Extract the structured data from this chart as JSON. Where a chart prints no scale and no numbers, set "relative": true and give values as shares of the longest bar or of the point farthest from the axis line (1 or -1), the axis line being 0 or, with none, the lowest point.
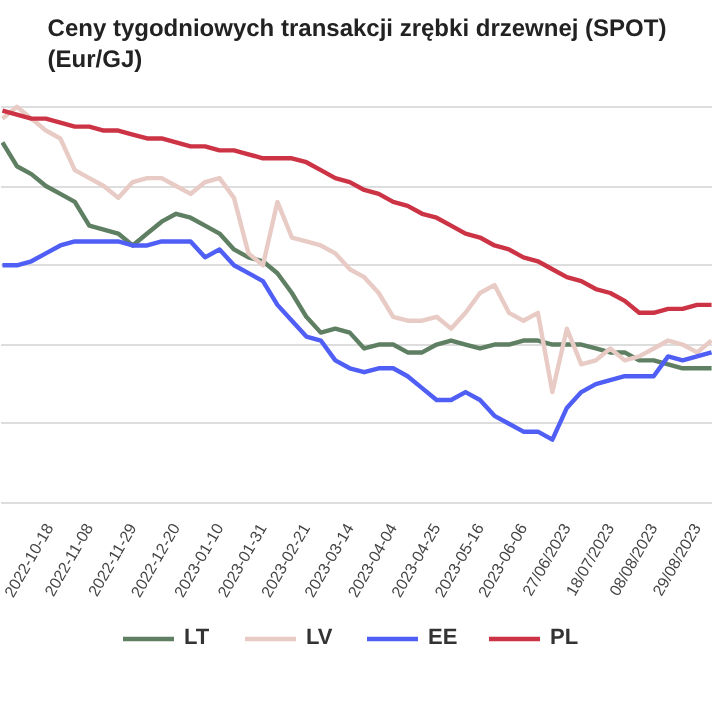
{
  "chart_data": {
    "type": "line",
    "title": "Ceny tygodniowych transakcji zrębki drzewnej (SPOT)\n(Eur/GJ)",
    "relative": true,
    "grid": "y",
    "legend": "bottom",
    "line_style": "solid",
    "marker": "none",
    "categories": [
      null,
      null,
      null,
      "2022-10-18",
      null,
      null,
      "2022-11-08",
      null,
      null,
      "2022-11-29",
      null,
      null,
      "2022-12-20",
      null,
      null,
      "2023-01-10",
      null,
      null,
      "2023-01-31",
      null,
      null,
      "2023-02-21",
      null,
      null,
      "2023-03-14",
      null,
      null,
      "2023-04-04",
      null,
      null,
      "2023-04-25",
      null,
      null,
      "2023-05-16",
      null,
      null,
      "2023-06-06",
      null,
      null,
      "27/06/2023",
      null,
      null,
      "18/07/2023",
      null,
      null,
      "08/08/2023",
      null,
      null,
      "29/08/2023",
      null
    ],
    "series": [
      {
        "name": "LT",
        "color": "#5f7f63",
        "values": [
          0.91,
          0.85,
          0.83,
          0.8,
          0.78,
          0.76,
          0.7,
          0.69,
          0.68,
          0.65,
          0.68,
          0.71,
          0.73,
          0.72,
          0.7,
          0.68,
          0.64,
          0.62,
          0.61,
          0.58,
          0.53,
          0.47,
          0.43,
          0.44,
          0.43,
          0.39,
          0.4,
          0.4,
          0.38,
          0.38,
          0.4,
          0.41,
          0.4,
          0.39,
          0.4,
          0.4,
          0.41,
          0.41,
          0.4,
          0.4,
          0.4,
          0.39,
          0.38,
          0.38,
          0.36,
          0.36,
          0.35,
          0.34,
          0.34,
          0.34
        ]
      },
      {
        "name": "LV",
        "color": "#e8cbc5",
        "values": [
          0.97,
          1.0,
          0.97,
          0.94,
          0.92,
          0.84,
          0.82,
          0.8,
          0.77,
          0.81,
          0.82,
          0.82,
          0.8,
          0.78,
          0.81,
          0.82,
          0.77,
          0.63,
          0.6,
          0.76,
          0.67,
          0.66,
          0.65,
          0.63,
          0.59,
          0.57,
          0.53,
          0.47,
          0.46,
          0.46,
          0.47,
          0.44,
          0.48,
          0.53,
          0.55,
          0.48,
          0.46,
          0.48,
          0.28,
          0.44,
          0.35,
          0.36,
          0.39,
          0.36,
          0.37,
          0.39,
          0.41,
          0.4,
          0.38,
          0.41
        ]
      },
      {
        "name": "EE",
        "color": "#4f5ef5",
        "values": [
          0.6,
          0.6,
          0.61,
          0.63,
          0.65,
          0.66,
          0.66,
          0.66,
          0.66,
          0.65,
          0.65,
          0.66,
          0.66,
          0.66,
          0.62,
          0.64,
          0.6,
          0.58,
          0.56,
          0.5,
          0.46,
          0.42,
          0.41,
          0.36,
          0.34,
          0.33,
          0.34,
          0.34,
          0.32,
          0.29,
          0.26,
          0.26,
          0.28,
          0.26,
          0.22,
          0.2,
          0.18,
          0.18,
          0.16,
          0.24,
          0.28,
          0.3,
          0.31,
          0.32,
          0.32,
          0.32,
          0.37,
          0.36,
          0.37,
          0.38
        ]
      },
      {
        "name": "PL",
        "color": "#cc3344",
        "values": [
          0.99,
          0.98,
          0.97,
          0.97,
          0.96,
          0.95,
          0.95,
          0.94,
          0.94,
          0.93,
          0.92,
          0.92,
          0.91,
          0.9,
          0.9,
          0.89,
          0.89,
          0.88,
          0.87,
          0.87,
          0.87,
          0.86,
          0.84,
          0.82,
          0.81,
          0.79,
          0.78,
          0.76,
          0.75,
          0.73,
          0.72,
          0.7,
          0.68,
          0.67,
          0.65,
          0.64,
          0.62,
          0.61,
          0.59,
          0.57,
          0.56,
          0.54,
          0.53,
          0.51,
          0.48,
          0.48,
          0.49,
          0.49,
          0.5,
          0.5
        ]
      }
    ]
  }
}
